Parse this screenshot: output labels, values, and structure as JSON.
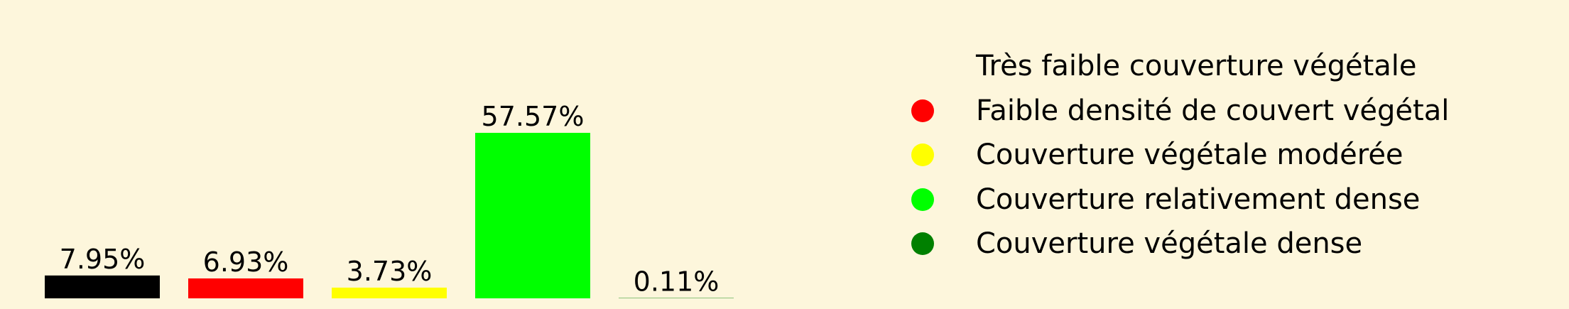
{
  "chart_data": {
    "type": "bar",
    "categories": [
      "Très faible couverture végétale",
      "Faible densité de couvert végétal",
      "Couverture végétale modérée",
      "Couverture relativement dense",
      "Couverture végétale dense"
    ],
    "values": [
      7.95,
      6.93,
      3.73,
      57.57,
      0.11
    ],
    "value_labels": [
      "7.95%",
      "6.93%",
      "3.73%",
      "57.57%",
      "0.11%"
    ],
    "colors": [
      "#000000",
      "#ff0000",
      "#ffff00",
      "#00ff00",
      "#008000"
    ],
    "unit": "%",
    "title": "",
    "xlabel": "",
    "ylabel": "",
    "grid": false,
    "axes_visible": false,
    "legend_position": "right",
    "background_color": "#fdf6dc"
  },
  "legend": {
    "items": [
      {
        "label": "Très faible couverture végétale",
        "color": "#fdf6dc"
      },
      {
        "label": "Faible densité de couvert végétal",
        "color": "#ff0000"
      },
      {
        "label": "Couverture végétale modérée",
        "color": "#ffff00"
      },
      {
        "label": "Couverture relativement dense",
        "color": "#00ff00"
      },
      {
        "label": "Couverture végétale dense",
        "color": "#008000"
      }
    ]
  }
}
